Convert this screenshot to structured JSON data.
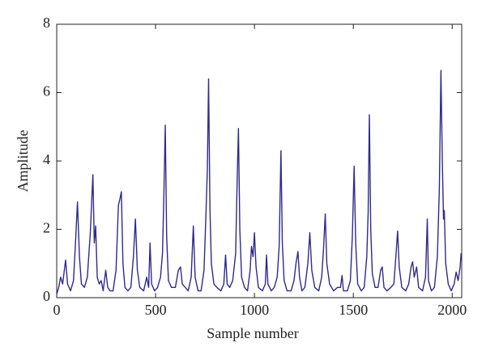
{
  "chart_data": {
    "type": "line",
    "xlabel": "Sample number",
    "ylabel": "Amplitude",
    "xlim": [
      0,
      2048
    ],
    "ylim": [
      0,
      8
    ],
    "xticks": [
      0,
      500,
      1000,
      1500,
      2000
    ],
    "yticks": [
      0,
      2,
      4,
      6,
      8
    ],
    "series": [
      {
        "color": "#2f2a8c",
        "x": [
          0,
          10,
          20,
          30,
          45,
          55,
          70,
          85,
          95,
          105,
          115,
          125,
          140,
          155,
          170,
          183,
          190,
          197,
          205,
          215,
          225,
          235,
          248,
          258,
          270,
          285,
          300,
          312,
          320,
          327,
          335,
          345,
          360,
          375,
          388,
          398,
          408,
          420,
          440,
          455,
          465,
          472,
          480,
          495,
          510,
          525,
          535,
          542,
          549,
          556,
          565,
          580,
          600,
          615,
          626,
          635,
          650,
          665,
          680,
          691,
          700,
          715,
          730,
          745,
          755,
          762,
          768,
          775,
          782,
          795,
          810,
          830,
          845,
          854,
          862,
          875,
          890,
          905,
          912,
          919,
          926,
          935,
          950,
          965,
          978,
          985,
          993,
          1000,
          1008,
          1020,
          1040,
          1055,
          1061,
          1068,
          1085,
          1100,
          1115,
          1125,
          1134,
          1141,
          1150,
          1165,
          1185,
          1200,
          1210,
          1220,
          1228,
          1240,
          1255,
          1270,
          1280,
          1290,
          1305,
          1325,
          1340,
          1350,
          1358,
          1366,
          1380,
          1400,
          1420,
          1435,
          1443,
          1450,
          1470,
          1485,
          1495,
          1504,
          1512,
          1522,
          1540,
          1555,
          1568,
          1575,
          1581,
          1588,
          1596,
          1610,
          1625,
          1638,
          1646,
          1655,
          1670,
          1690,
          1705,
          1715,
          1724,
          1732,
          1745,
          1765,
          1780,
          1792,
          1800,
          1808,
          1820,
          1830,
          1850,
          1865,
          1874,
          1880,
          1895,
          1910,
          1925,
          1935,
          1943,
          1950,
          1956,
          1960,
          1967,
          1980,
          1995,
          2010,
          2020,
          2030,
          2040,
          2045
        ],
        "values": [
          0.1,
          0.3,
          0.6,
          0.4,
          1.1,
          0.4,
          0.2,
          0.5,
          1.6,
          2.8,
          1.2,
          0.4,
          0.3,
          0.6,
          1.9,
          3.6,
          1.6,
          2.1,
          0.6,
          0.4,
          0.5,
          0.2,
          0.8,
          0.3,
          0.2,
          0.2,
          0.8,
          2.7,
          2.9,
          3.1,
          1.0,
          0.3,
          0.2,
          0.3,
          1.2,
          2.3,
          0.8,
          0.3,
          0.2,
          0.6,
          0.3,
          1.6,
          0.4,
          0.2,
          0.3,
          0.6,
          1.3,
          3.0,
          5.05,
          1.8,
          0.5,
          0.3,
          0.3,
          0.8,
          0.9,
          0.4,
          0.3,
          0.2,
          0.6,
          2.1,
          0.6,
          0.2,
          0.2,
          0.8,
          2.5,
          3.8,
          6.4,
          2.6,
          1.0,
          0.4,
          0.3,
          0.2,
          0.4,
          1.25,
          0.4,
          0.3,
          0.5,
          1.3,
          3.3,
          4.95,
          2.0,
          0.6,
          0.3,
          0.2,
          0.8,
          1.5,
          1.2,
          1.9,
          0.9,
          0.3,
          0.2,
          0.4,
          1.25,
          0.4,
          0.2,
          0.3,
          0.6,
          1.5,
          4.3,
          1.6,
          0.5,
          0.2,
          0.2,
          0.5,
          1.0,
          1.35,
          0.6,
          0.2,
          0.3,
          1.0,
          1.9,
          0.8,
          0.3,
          0.2,
          0.6,
          1.5,
          2.45,
          1.0,
          0.4,
          0.2,
          0.3,
          0.3,
          0.65,
          0.2,
          0.2,
          0.5,
          1.8,
          3.85,
          1.6,
          0.4,
          0.2,
          0.3,
          1.2,
          2.5,
          5.35,
          2.0,
          0.7,
          0.3,
          0.3,
          0.8,
          0.9,
          0.3,
          0.2,
          0.3,
          0.4,
          1.2,
          1.95,
          0.9,
          0.3,
          0.2,
          0.4,
          0.9,
          1.05,
          0.6,
          0.9,
          0.3,
          0.2,
          0.6,
          2.3,
          0.5,
          0.2,
          0.3,
          1.2,
          3.2,
          6.65,
          4.0,
          2.3,
          2.55,
          1.0,
          0.4,
          0.2,
          0.4,
          0.75,
          0.5,
          0.9,
          1.3
        ]
      }
    ]
  }
}
